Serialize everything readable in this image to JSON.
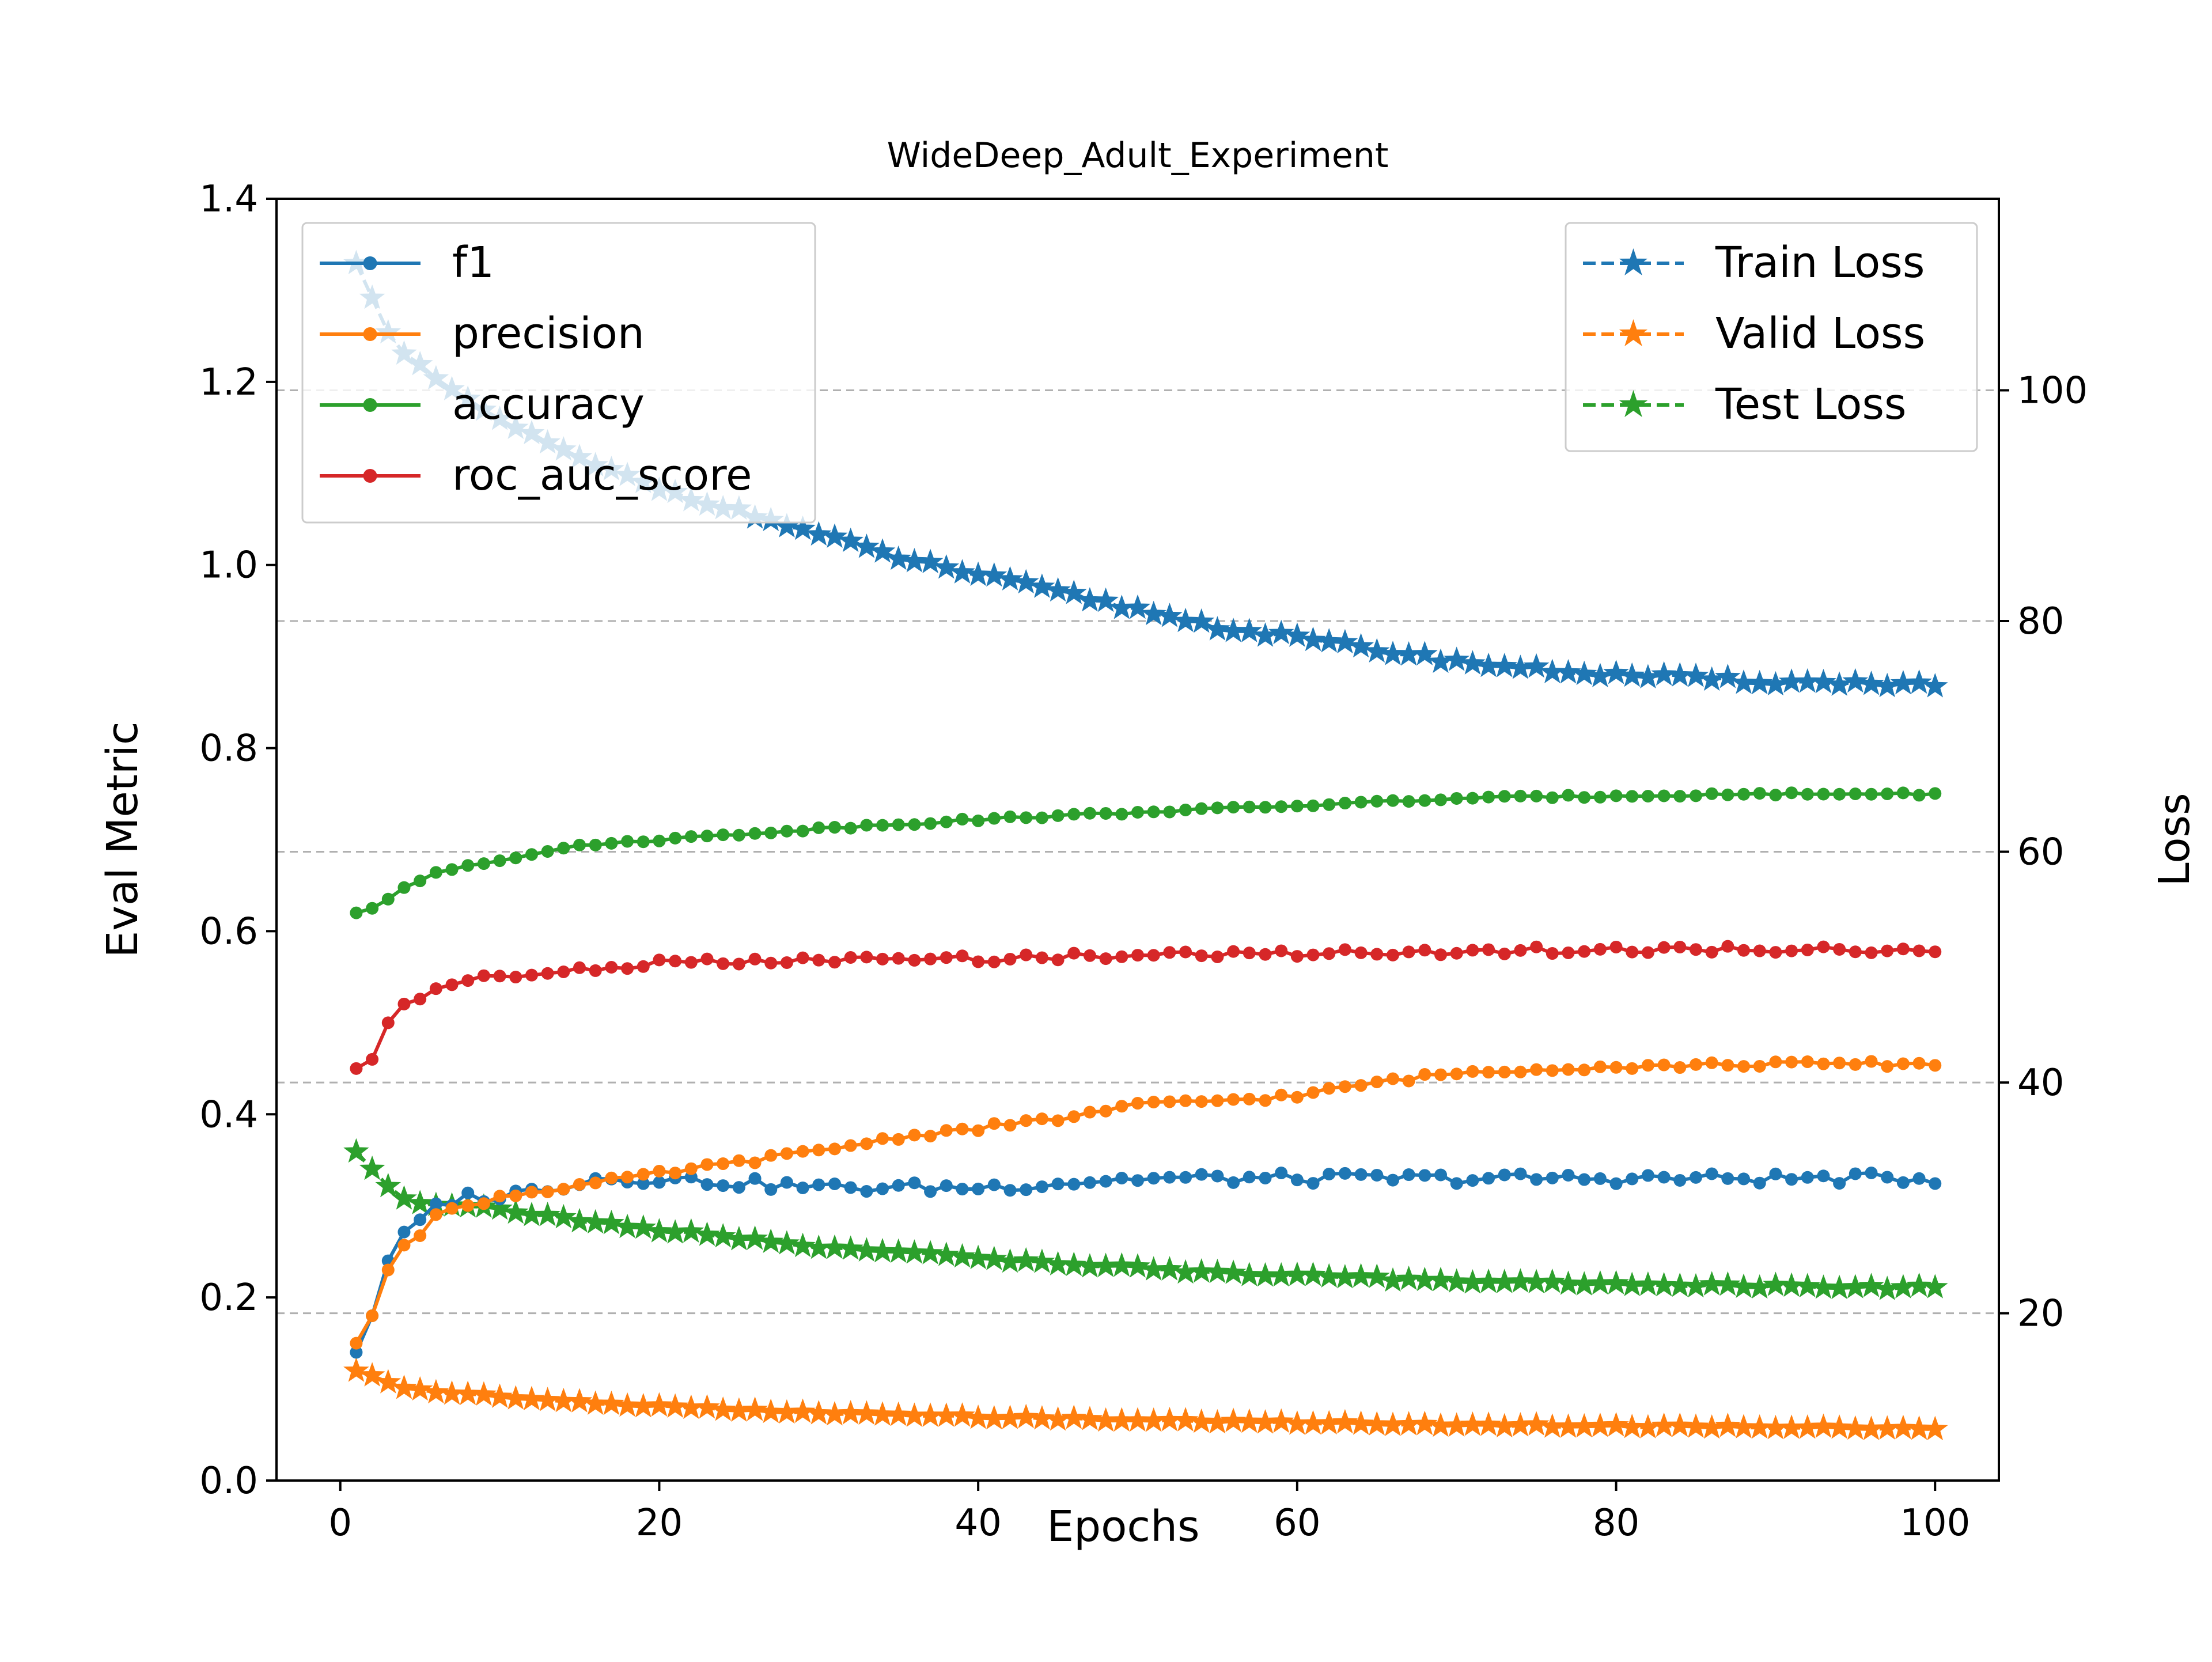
{
  "chart_data": {
    "type": "line",
    "title": "WideDeep_Adult_Experiment",
    "xlabel": "Epochs",
    "ylabel": "Eval Metric",
    "y2label": "Loss",
    "xlim": [
      -4,
      104
    ],
    "ylim": [
      0.0,
      1.4
    ],
    "y2lim": [
      5.5,
      116.6
    ],
    "x_ticks": [
      0,
      20,
      40,
      60,
      80,
      100
    ],
    "y_ticks": [
      0.0,
      0.2,
      0.4,
      0.6,
      0.8,
      1.0,
      1.2,
      1.4
    ],
    "y2_ticks": [
      20,
      40,
      60,
      80,
      100
    ],
    "grid": "dashed horizontal lines at right-axis ticks",
    "legend_left": {
      "placement": "upper-left",
      "entries": [
        "f1",
        "precision",
        "accuracy",
        "roc_auc_score"
      ]
    },
    "legend_right": {
      "placement": "upper-right",
      "entries": [
        "Train Loss",
        "Valid Loss",
        "Test Loss"
      ]
    },
    "colors": {
      "blue": "#1f77b4",
      "orange": "#ff7f0e",
      "green": "#2ca02c",
      "red": "#d62728",
      "grid": "#b0b0b0"
    },
    "metric_series": [
      {
        "name": "f1",
        "axis": "left",
        "marker": "dot",
        "dash": "solid",
        "color": "#1f77b4",
        "knots": [
          [
            1,
            0.14
          ],
          [
            2,
            0.18
          ],
          [
            3,
            0.24
          ],
          [
            4,
            0.27
          ],
          [
            5,
            0.28
          ],
          [
            6,
            0.3
          ],
          [
            8,
            0.31
          ],
          [
            10,
            0.31
          ],
          [
            13,
            0.32
          ],
          [
            16,
            0.33
          ],
          [
            20,
            0.33
          ],
          [
            30,
            0.32
          ],
          [
            40,
            0.32
          ],
          [
            50,
            0.33
          ],
          [
            60,
            0.33
          ],
          [
            70,
            0.33
          ],
          [
            80,
            0.33
          ],
          [
            90,
            0.33
          ],
          [
            100,
            0.33
          ]
        ],
        "amp": 0.006
      },
      {
        "name": "precision",
        "axis": "left",
        "marker": "dot",
        "dash": "solid",
        "color": "#ff7f0e",
        "knots": [
          [
            1,
            0.15
          ],
          [
            2,
            0.18
          ],
          [
            3,
            0.23
          ],
          [
            4,
            0.26
          ],
          [
            5,
            0.27
          ],
          [
            6,
            0.29
          ],
          [
            8,
            0.3
          ],
          [
            10,
            0.31
          ],
          [
            14,
            0.32
          ],
          [
            18,
            0.33
          ],
          [
            22,
            0.34
          ],
          [
            26,
            0.35
          ],
          [
            30,
            0.36
          ],
          [
            35,
            0.375
          ],
          [
            40,
            0.385
          ],
          [
            45,
            0.395
          ],
          [
            50,
            0.41
          ],
          [
            55,
            0.415
          ],
          [
            60,
            0.42
          ],
          [
            65,
            0.435
          ],
          [
            70,
            0.445
          ],
          [
            75,
            0.45
          ],
          [
            80,
            0.452
          ],
          [
            90,
            0.455
          ],
          [
            100,
            0.455
          ]
        ],
        "amp": 0.003
      },
      {
        "name": "accuracy",
        "axis": "left",
        "marker": "dot",
        "dash": "solid",
        "color": "#2ca02c",
        "knots": [
          [
            1,
            0.62
          ],
          [
            2,
            0.625
          ],
          [
            3,
            0.635
          ],
          [
            4,
            0.648
          ],
          [
            5,
            0.655
          ],
          [
            6,
            0.665
          ],
          [
            8,
            0.672
          ],
          [
            10,
            0.678
          ],
          [
            13,
            0.688
          ],
          [
            16,
            0.695
          ],
          [
            20,
            0.7
          ],
          [
            25,
            0.706
          ],
          [
            30,
            0.712
          ],
          [
            40,
            0.722
          ],
          [
            50,
            0.73
          ],
          [
            60,
            0.737
          ],
          [
            70,
            0.745
          ],
          [
            80,
            0.748
          ],
          [
            90,
            0.75
          ],
          [
            100,
            0.75
          ]
        ],
        "amp": 0.0015
      },
      {
        "name": "roc_auc_score",
        "axis": "left",
        "marker": "dot",
        "dash": "solid",
        "color": "#d62728",
        "knots": [
          [
            1,
            0.45
          ],
          [
            2,
            0.46
          ],
          [
            3,
            0.5
          ],
          [
            4,
            0.52
          ],
          [
            5,
            0.525
          ],
          [
            6,
            0.54
          ],
          [
            7,
            0.545
          ],
          [
            9,
            0.548
          ],
          [
            12,
            0.552
          ],
          [
            16,
            0.56
          ],
          [
            20,
            0.565
          ],
          [
            30,
            0.568
          ],
          [
            40,
            0.57
          ],
          [
            50,
            0.574
          ],
          [
            60,
            0.576
          ],
          [
            70,
            0.578
          ],
          [
            80,
            0.58
          ],
          [
            90,
            0.58
          ],
          [
            100,
            0.58
          ]
        ],
        "amp": 0.004
      }
    ],
    "loss_series": [
      {
        "name": "Train Loss",
        "axis": "right",
        "marker": "star",
        "dash": "dashed",
        "color": "#1f77b4",
        "knots": [
          [
            1,
            111
          ],
          [
            2,
            108
          ],
          [
            3,
            105
          ],
          [
            4,
            103
          ],
          [
            6,
            101
          ],
          [
            8,
            99
          ],
          [
            10,
            97.5
          ],
          [
            15,
            94
          ],
          [
            20,
            91.5
          ],
          [
            25,
            89.5
          ],
          [
            30,
            87.5
          ],
          [
            35,
            85.5
          ],
          [
            40,
            84
          ],
          [
            45,
            82.5
          ],
          [
            50,
            81
          ],
          [
            55,
            79.5
          ],
          [
            60,
            78.5
          ],
          [
            65,
            77.5
          ],
          [
            70,
            76.5
          ],
          [
            75,
            75.8
          ],
          [
            80,
            75.3
          ],
          [
            85,
            75
          ],
          [
            90,
            74.7
          ],
          [
            95,
            74.6
          ],
          [
            100,
            74.5
          ]
        ],
        "amp": 0.25
      },
      {
        "name": "Valid Loss",
        "axis": "right",
        "marker": "star",
        "dash": "dashed",
        "color": "#ff7f0e",
        "knots": [
          [
            1,
            15
          ],
          [
            2,
            14.6
          ],
          [
            3,
            14
          ],
          [
            4,
            13.5
          ],
          [
            6,
            13.2
          ],
          [
            8,
            13
          ],
          [
            10,
            12.7
          ],
          [
            15,
            12.3
          ],
          [
            20,
            11.9
          ],
          [
            25,
            11.6
          ],
          [
            30,
            11.3
          ],
          [
            40,
            11
          ],
          [
            50,
            10.7
          ],
          [
            60,
            10.5
          ],
          [
            70,
            10.3
          ],
          [
            80,
            10.2
          ],
          [
            90,
            10.1
          ],
          [
            100,
            10
          ]
        ],
        "amp": 0.1
      },
      {
        "name": "Test Loss",
        "axis": "right",
        "marker": "star",
        "dash": "dashed",
        "color": "#2ca02c",
        "knots": [
          [
            1,
            34
          ],
          [
            2,
            32.5
          ],
          [
            3,
            31
          ],
          [
            4,
            30
          ],
          [
            5,
            29.6
          ],
          [
            6,
            29.5
          ],
          [
            8,
            29.3
          ],
          [
            10,
            29
          ],
          [
            15,
            28
          ],
          [
            20,
            27.2
          ],
          [
            25,
            26.5
          ],
          [
            30,
            25.8
          ],
          [
            35,
            25.2
          ],
          [
            40,
            24.8
          ],
          [
            45,
            24.3
          ],
          [
            50,
            23.9
          ],
          [
            55,
            23.5
          ],
          [
            60,
            23.2
          ],
          [
            65,
            23
          ],
          [
            70,
            22.8
          ],
          [
            80,
            22.5
          ],
          [
            90,
            22.3
          ],
          [
            100,
            22.2
          ]
        ],
        "amp": 0.15
      }
    ]
  }
}
